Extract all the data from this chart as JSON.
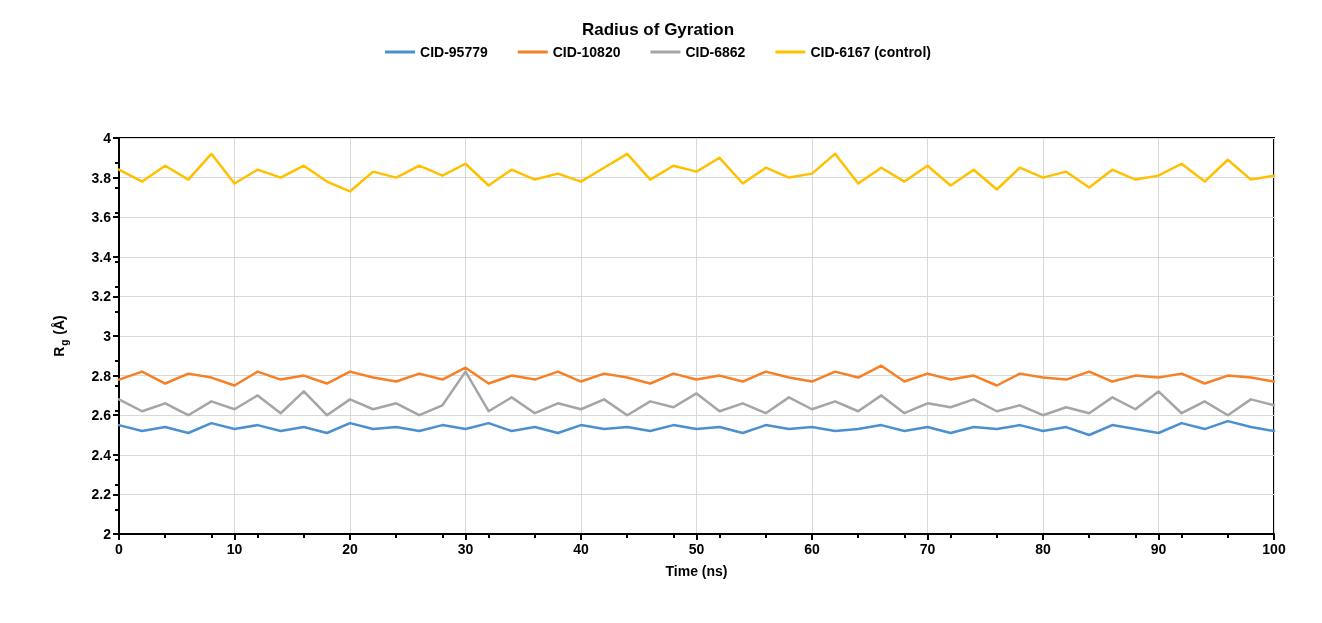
{
  "chart_data": {
    "type": "line",
    "title": "Radius of Gyration",
    "xlabel": "Time (ns)",
    "ylabel": "R$_{g}$ (Å)",
    "x": [
      0,
      2,
      4,
      6,
      8,
      10,
      12,
      14,
      16,
      18,
      20,
      22,
      24,
      26,
      28,
      30,
      32,
      34,
      36,
      38,
      40,
      42,
      44,
      46,
      48,
      50,
      52,
      54,
      56,
      58,
      60,
      62,
      64,
      66,
      68,
      70,
      72,
      74,
      76,
      78,
      80,
      82,
      84,
      86,
      88,
      90,
      92,
      94,
      96,
      98,
      100
    ],
    "series": [
      {
        "name": "CID-95779",
        "color": "#4a8fd0",
        "values": [
          2.55,
          2.52,
          2.54,
          2.51,
          2.56,
          2.53,
          2.55,
          2.52,
          2.54,
          2.51,
          2.56,
          2.53,
          2.54,
          2.52,
          2.55,
          2.53,
          2.56,
          2.52,
          2.54,
          2.51,
          2.55,
          2.53,
          2.54,
          2.52,
          2.55,
          2.53,
          2.54,
          2.51,
          2.55,
          2.53,
          2.54,
          2.52,
          2.53,
          2.55,
          2.52,
          2.54,
          2.51,
          2.54,
          2.53,
          2.55,
          2.52,
          2.54,
          2.5,
          2.55,
          2.53,
          2.51,
          2.56,
          2.53,
          2.57,
          2.54,
          2.52
        ]
      },
      {
        "name": "CID-10820",
        "color": "#f58025",
        "values": [
          2.78,
          2.82,
          2.76,
          2.81,
          2.79,
          2.75,
          2.82,
          2.78,
          2.8,
          2.76,
          2.82,
          2.79,
          2.77,
          2.81,
          2.78,
          2.84,
          2.76,
          2.8,
          2.78,
          2.82,
          2.77,
          2.81,
          2.79,
          2.76,
          2.81,
          2.78,
          2.8,
          2.77,
          2.82,
          2.79,
          2.77,
          2.82,
          2.79,
          2.85,
          2.77,
          2.81,
          2.78,
          2.8,
          2.75,
          2.81,
          2.79,
          2.78,
          2.82,
          2.77,
          2.8,
          2.79,
          2.81,
          2.76,
          2.8,
          2.79,
          2.77
        ]
      },
      {
        "name": "CID-6862",
        "color": "#a5a5a5",
        "values": [
          2.68,
          2.62,
          2.66,
          2.6,
          2.67,
          2.63,
          2.7,
          2.61,
          2.72,
          2.6,
          2.68,
          2.63,
          2.66,
          2.6,
          2.65,
          2.82,
          2.62,
          2.69,
          2.61,
          2.66,
          2.63,
          2.68,
          2.6,
          2.67,
          2.64,
          2.71,
          2.62,
          2.66,
          2.61,
          2.69,
          2.63,
          2.67,
          2.62,
          2.7,
          2.61,
          2.66,
          2.64,
          2.68,
          2.62,
          2.65,
          2.6,
          2.64,
          2.61,
          2.69,
          2.63,
          2.72,
          2.61,
          2.67,
          2.6,
          2.68,
          2.65
        ]
      },
      {
        "name": "CID-6167 (control)",
        "color": "#ffc000",
        "values": [
          3.84,
          3.78,
          3.86,
          3.79,
          3.92,
          3.77,
          3.84,
          3.8,
          3.86,
          3.78,
          3.73,
          3.83,
          3.8,
          3.86,
          3.81,
          3.87,
          3.76,
          3.84,
          3.79,
          3.82,
          3.78,
          3.85,
          3.92,
          3.79,
          3.86,
          3.83,
          3.9,
          3.77,
          3.85,
          3.8,
          3.82,
          3.92,
          3.77,
          3.85,
          3.78,
          3.86,
          3.76,
          3.84,
          3.74,
          3.85,
          3.8,
          3.83,
          3.75,
          3.84,
          3.79,
          3.81,
          3.87,
          3.78,
          3.89,
          3.79,
          3.81
        ]
      }
    ],
    "xlim": [
      0,
      100
    ],
    "xticks": [
      0,
      10,
      20,
      30,
      40,
      50,
      60,
      70,
      80,
      90,
      100
    ],
    "ylim": [
      2,
      4
    ],
    "yticks": [
      2,
      2.2,
      2.4,
      2.6,
      2.8,
      3,
      3.2,
      3.4,
      3.6,
      3.8,
      4
    ],
    "grid": true,
    "legend": "top",
    "marker": "none",
    "line_style": "solid"
  }
}
